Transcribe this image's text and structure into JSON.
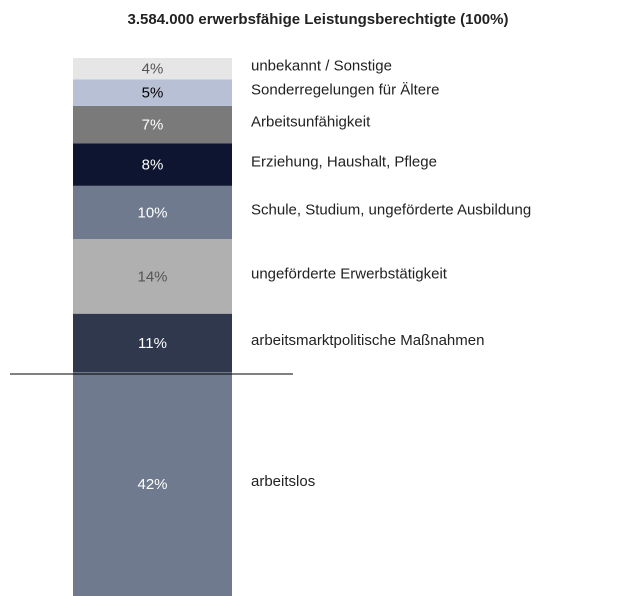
{
  "chart_data": {
    "type": "stacked_bar",
    "title": "3.584.000 erwerbsfähige Leistungsberechtigte (100%)",
    "categories": [
      "arbeitslos",
      "arbeitsmarktpolitische Maßnahmen",
      "ungeförderte Erwerbstätigkeit",
      "Schule, Studium, ungeförderte Ausbildung",
      "Erziehung, Haushalt, Pflege",
      "Arbeitsunfähigkeit",
      "Sonderregelungen für Ältere",
      "unbekannt / Sonstige"
    ],
    "values": [
      42,
      11,
      14,
      10,
      8,
      7,
      5,
      4
    ],
    "value_labels": [
      "42%",
      "11%",
      "14%",
      "10%",
      "8%",
      "7%",
      "5%",
      "4%"
    ],
    "colors": [
      "#6f7a8e",
      "#2f384c",
      "#b0b0b0",
      "#6f7a8e",
      "#0d1530",
      "#7a7a7a",
      "#b8c0d6",
      "#e6e6e6"
    ],
    "label_colors": [
      "#ffffff",
      "#ffffff",
      "#555555",
      "#ffffff",
      "#ffffff",
      "#ffffff",
      "#000000",
      "#555555"
    ]
  }
}
